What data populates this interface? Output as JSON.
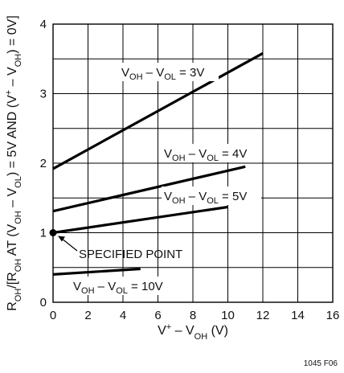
{
  "chart_data": {
    "type": "line",
    "xlabel_parts": [
      "V",
      "+",
      " – V",
      "OH",
      " (V)"
    ],
    "ylabel_parts": [
      "R",
      "OH",
      "/[R",
      "OH",
      " AT (V",
      "OH",
      " – V",
      "OL",
      ") = 5V AND (V",
      "+",
      " – V",
      "OH",
      ") = 0V]"
    ],
    "xlim": [
      0,
      16
    ],
    "ylim": [
      0,
      4
    ],
    "x_ticks": [
      0,
      2,
      4,
      6,
      8,
      10,
      12,
      14,
      16
    ],
    "y_ticks": [
      0,
      1,
      2,
      3,
      4
    ],
    "grid": true,
    "series": [
      {
        "name": "V_OH – V_OL = 3V",
        "label_main": "V",
        "label_sub1": "OH",
        "label_mid": " – V",
        "label_sub2": "OL",
        "label_tail": " = 3V",
        "x": [
          0,
          12
        ],
        "y": [
          1.92,
          3.58
        ]
      },
      {
        "name": "V_OH – V_OL = 4V",
        "label_main": "V",
        "label_sub1": "OH",
        "label_mid": " – V",
        "label_sub2": "OL",
        "label_tail": " = 4V",
        "x": [
          0,
          11
        ],
        "y": [
          1.31,
          1.95
        ]
      },
      {
        "name": "V_OH – V_OL = 5V",
        "label_main": "V",
        "label_sub1": "OH",
        "label_mid": " – V",
        "label_sub2": "OL",
        "label_tail": " = 5V",
        "x": [
          0,
          10
        ],
        "y": [
          1.0,
          1.37
        ]
      },
      {
        "name": "V_OH – V_OL = 10V",
        "label_main": "V",
        "label_sub1": "OH",
        "label_mid": " – V",
        "label_sub2": "OL",
        "label_tail": " = 10V",
        "x": [
          0,
          5
        ],
        "y": [
          0.4,
          0.48
        ]
      }
    ],
    "annotations": [
      {
        "text": "SPECIFIED POINT",
        "x": 0,
        "y": 1.0
      }
    ],
    "figure_id": "1045 F06"
  }
}
